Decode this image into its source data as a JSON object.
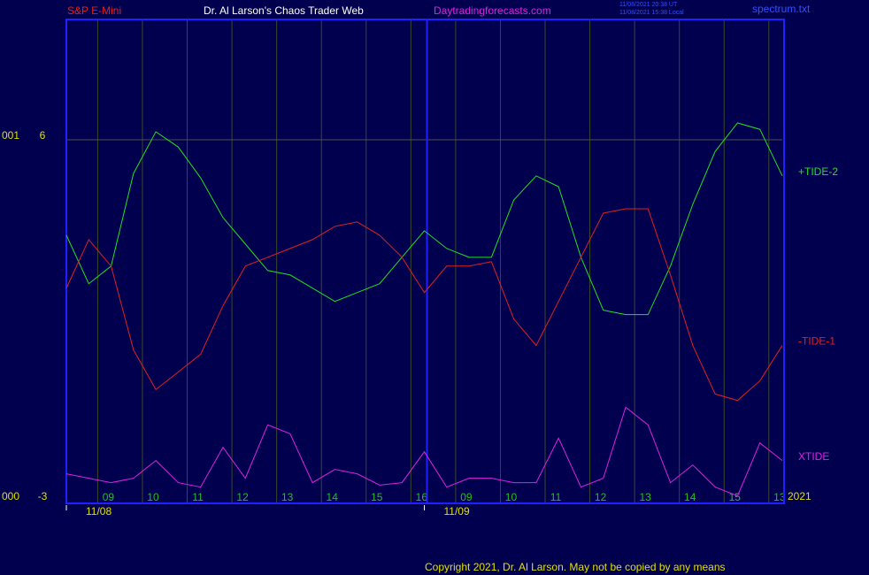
{
  "header": {
    "symbol": "S&P E-Mini",
    "site": "Dr. Al Larson's Chaos Trader Web",
    "url": "Daytradingforecasts.com",
    "time_ut": "11/08/2021 20:38 UT",
    "time_local": "11/08/2021 15:38 Local",
    "file": "spectrum.txt"
  },
  "footer": {
    "copyright": "Copyright 2021, Dr. Al Larson. May not be copied by any means",
    "year": "2021"
  },
  "chart_data": {
    "type": "line",
    "x": [
      0,
      0.5,
      1,
      1.5,
      2,
      2.5,
      3,
      3.5,
      4,
      4.5,
      5,
      5.5,
      6,
      6.5,
      7,
      7.5,
      8,
      8.5,
      9,
      9.5,
      10,
      10.5,
      11,
      11.5,
      12,
      12.5,
      13,
      13.5,
      14,
      14.5,
      15,
      15.5,
      16
    ],
    "xlim": [
      0,
      16
    ],
    "xticks": [
      {
        "value": 0.7,
        "label": "09"
      },
      {
        "value": 1.7,
        "label": "10"
      },
      {
        "value": 2.7,
        "label": "11"
      },
      {
        "value": 3.7,
        "label": "12"
      },
      {
        "value": 4.7,
        "label": "13"
      },
      {
        "value": 5.7,
        "label": "14"
      },
      {
        "value": 6.7,
        "label": "15"
      },
      {
        "value": 7.7,
        "label": "16"
      },
      {
        "value": 8.7,
        "label": "09"
      },
      {
        "value": 9.7,
        "label": "10"
      },
      {
        "value": 10.7,
        "label": "11"
      },
      {
        "value": 11.7,
        "label": "12"
      },
      {
        "value": 12.7,
        "label": "13"
      },
      {
        "value": 13.7,
        "label": "14"
      },
      {
        "value": 14.7,
        "label": "15"
      },
      {
        "value": 15.7,
        "label": "13"
      }
    ],
    "date_ticks": [
      {
        "value": 0,
        "label": "11/08"
      },
      {
        "value": 8,
        "label": "11/09"
      }
    ],
    "ylim": [
      -3,
      9
    ],
    "yticks": [
      6,
      -3
    ],
    "ytick_codes": [
      "001",
      "000"
    ],
    "grid": true,
    "series": [
      {
        "name": "+TIDE-2",
        "color": "#20e020",
        "values": [
          3.62,
          2.41,
          2.85,
          5.16,
          6.2,
          5.82,
          5.05,
          4.06,
          3.4,
          2.74,
          2.63,
          2.3,
          1.97,
          2.19,
          2.41,
          3.07,
          3.73,
          3.29,
          3.07,
          3.07,
          4.5,
          5.1,
          4.83,
          3.07,
          1.75,
          1.64,
          1.64,
          2.85,
          4.39,
          5.71,
          6.42,
          6.26,
          5.1
        ]
      },
      {
        "name": "-TIDE-1",
        "color": "#e02020",
        "values": [
          2.3,
          3.51,
          2.85,
          0.76,
          -0.23,
          0.21,
          0.65,
          1.86,
          2.85,
          3.07,
          3.29,
          3.51,
          3.84,
          3.95,
          3.62,
          3.07,
          2.19,
          2.85,
          2.85,
          2.96,
          1.53,
          0.87,
          1.97,
          3.07,
          4.17,
          4.28,
          4.28,
          2.63,
          0.87,
          -0.34,
          -0.5,
          -0.01,
          0.87
        ]
      },
      {
        "name": "XTIDE",
        "color": "#e020e0",
        "values": [
          -2.33,
          -2.44,
          -2.55,
          -2.44,
          -2.0,
          -2.55,
          -2.66,
          -1.67,
          -2.44,
          -1.11,
          -1.33,
          -2.55,
          -2.22,
          -2.33,
          -2.61,
          -2.55,
          -1.78,
          -2.66,
          -2.44,
          -2.44,
          -2.55,
          -2.55,
          -1.44,
          -2.66,
          -2.44,
          -0.67,
          -1.11,
          -2.55,
          -2.11,
          -2.66,
          -2.88,
          -1.56,
          -2.0
        ]
      }
    ]
  }
}
